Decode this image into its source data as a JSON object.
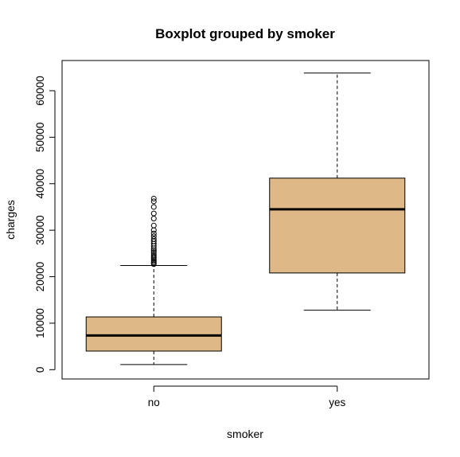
{
  "chart_data": {
    "type": "boxplot",
    "title": "Boxplot grouped by smoker",
    "xlabel": "smoker",
    "ylabel": "charges",
    "ylim": [
      -2000,
      66500
    ],
    "yticks": [
      0,
      10000,
      20000,
      30000,
      40000,
      50000,
      60000
    ],
    "box_fill": "#DEB887",
    "groups": [
      {
        "category": "no",
        "whisker_low": 1100,
        "q1": 4000,
        "median": 7350,
        "q3": 11350,
        "whisker_high": 22400,
        "outliers": [
          22700,
          23000,
          23300,
          23600,
          23900,
          24200,
          24500,
          24900,
          25300,
          25700,
          26100,
          26600,
          27100,
          27600,
          28100,
          28700,
          29300,
          30000,
          31000,
          32500,
          33600,
          35000,
          36200,
          36800
        ]
      },
      {
        "category": "yes",
        "whisker_low": 12800,
        "q1": 20800,
        "median": 34500,
        "q3": 41200,
        "whisker_high": 63800,
        "outliers": []
      }
    ]
  }
}
